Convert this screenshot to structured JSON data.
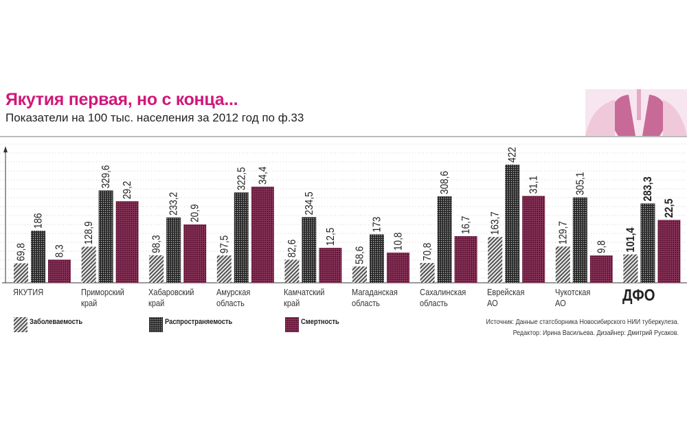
{
  "chart_data": {
    "type": "bar",
    "title": "Якутия первая, но с конца...",
    "subtitle": "Показатели на 100 тыс. населения за 2012 год по ф.33",
    "categories": [
      [
        "ЯКУТИЯ"
      ],
      [
        "Приморский",
        "край"
      ],
      [
        "Хабаровский",
        "край"
      ],
      [
        "Амурская",
        "область"
      ],
      [
        "Камчатский",
        "край"
      ],
      [
        "Магаданская",
        "область"
      ],
      [
        "Сахалинская",
        "область"
      ],
      [
        "Еврейская",
        "АО"
      ],
      [
        "Чукотская",
        "АО"
      ],
      [
        "ДФО"
      ]
    ],
    "series": [
      {
        "name": "Заболеваемость",
        "color": "#555555",
        "labels": [
          "69,8",
          "128,9",
          "98,3",
          "97,5",
          "82,6",
          "58,6",
          "70,8",
          "163,7",
          "129,7",
          "101,4"
        ],
        "values": [
          69.8,
          128.9,
          98.3,
          97.5,
          82.6,
          58.6,
          70.8,
          163.7,
          129.7,
          101.4
        ]
      },
      {
        "name": "Распространяемость",
        "color": "#333333",
        "labels": [
          "186",
          "329,6",
          "233,2",
          "322,5",
          "234,5",
          "173",
          "308,6",
          "422",
          "305,1",
          "283,3"
        ],
        "values": [
          186,
          329.6,
          233.2,
          322.5,
          234.5,
          173,
          308.6,
          422,
          305.1,
          283.3
        ]
      },
      {
        "name": "Смертность",
        "color": "#6b1238",
        "labels": [
          "8,3",
          "29,2",
          "20,9",
          "34,4",
          "12,5",
          "10,8",
          "16,7",
          "31,1",
          "9,8",
          "22,5"
        ],
        "values": [
          8.3,
          29.2,
          20.9,
          34.4,
          12.5,
          10.8,
          16.7,
          31.1,
          9.8,
          22.5
        ]
      }
    ],
    "highlight_category": "ДФО",
    "xlabel": "",
    "ylabel": "",
    "legend_position": "bottom",
    "source": "Источник: Данные статсборника Новосибирского НИИ туберкулеза.",
    "credits": "Редактор: Ирина Васильева. Дизайнер: Дмитрий Русаков."
  }
}
